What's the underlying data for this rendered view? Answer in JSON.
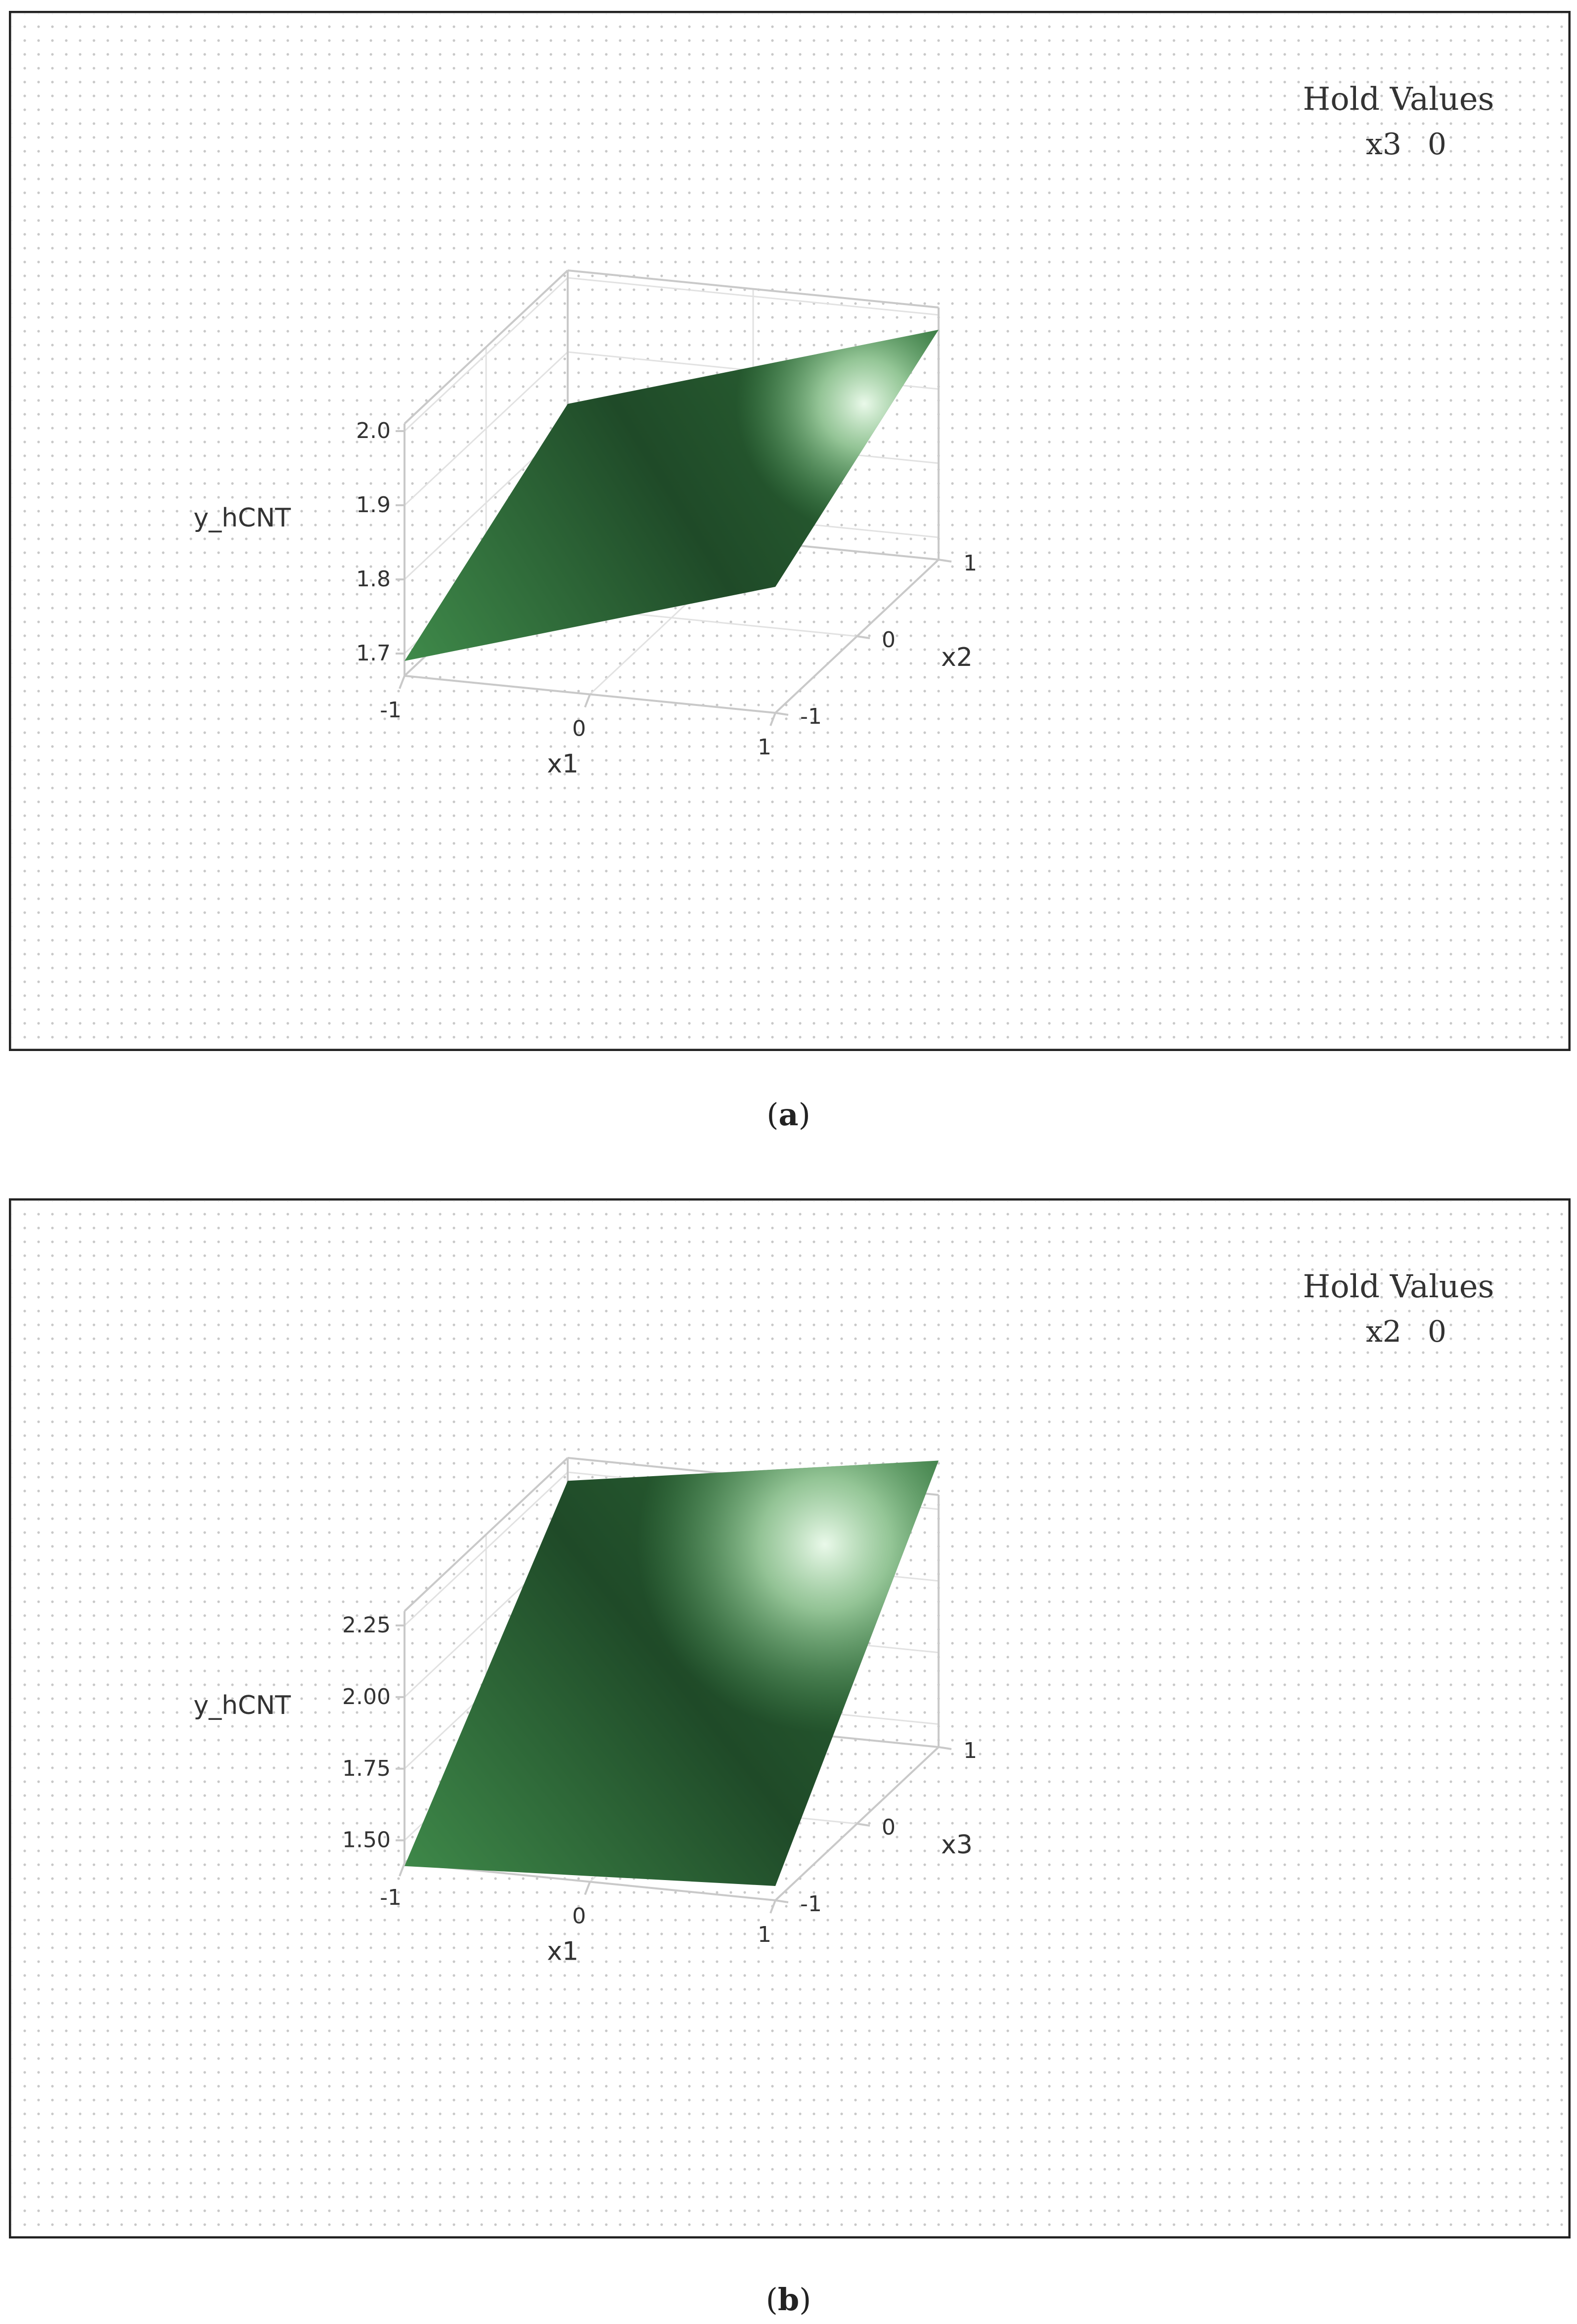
{
  "colors": {
    "frame": "#222222",
    "dot_grid": "#c8c8c8",
    "axis_box": "#c9c9c9",
    "gridline": "#e2e2e2",
    "surface_dark": "#1f4a28",
    "surface_mid": "#3f8a4a",
    "surface_light": "#eaf9ea",
    "text": "#333333"
  },
  "panels": [
    {
      "caption_open": "(",
      "caption_letter": "a",
      "caption_close": ")",
      "hold_title": "Hold Values",
      "hold_var": "x3",
      "hold_value": "0",
      "chart_data": {
        "type": "surface",
        "zlabel": "y_hCNT",
        "xlabel": "x1",
        "ylabel": "x2",
        "x_ticks": [
          "-1",
          "0",
          "1"
        ],
        "y_ticks": [
          "-1",
          "0",
          "1"
        ],
        "z_ticks": [
          "1.7",
          "1.8",
          "1.9",
          "2.0"
        ],
        "xlim": [
          -1,
          1
        ],
        "ylim": [
          -1,
          1
        ],
        "zlim": [
          1.67,
          2.01
        ],
        "surface_corners": [
          {
            "x": -1,
            "y": -1,
            "z": 1.69
          },
          {
            "x": 1,
            "y": -1,
            "z": 1.84
          },
          {
            "x": 1,
            "y": 1,
            "z": 1.98
          },
          {
            "x": -1,
            "y": 1,
            "z": 1.83
          }
        ]
      }
    },
    {
      "caption_open": "(",
      "caption_letter": "b",
      "caption_close": ")",
      "hold_title": "Hold Values",
      "hold_var": "x2",
      "hold_value": "0",
      "chart_data": {
        "type": "surface",
        "zlabel": "y_hCNT",
        "xlabel": "x1",
        "ylabel": "x3",
        "x_ticks": [
          "-1",
          "0",
          "1"
        ],
        "y_ticks": [
          "-1",
          "0",
          "1"
        ],
        "z_ticks": [
          "1.50",
          "1.75",
          "2.00",
          "2.25"
        ],
        "xlim": [
          -1,
          1
        ],
        "ylim": [
          -1,
          1
        ],
        "zlim": [
          1.42,
          2.3
        ],
        "surface_corners": [
          {
            "x": -1,
            "y": -1,
            "z": 1.41
          },
          {
            "x": 1,
            "y": -1,
            "z": 1.47
          },
          {
            "x": 1,
            "y": 1,
            "z": 2.42
          },
          {
            "x": -1,
            "y": 1,
            "z": 2.22
          }
        ]
      }
    }
  ]
}
